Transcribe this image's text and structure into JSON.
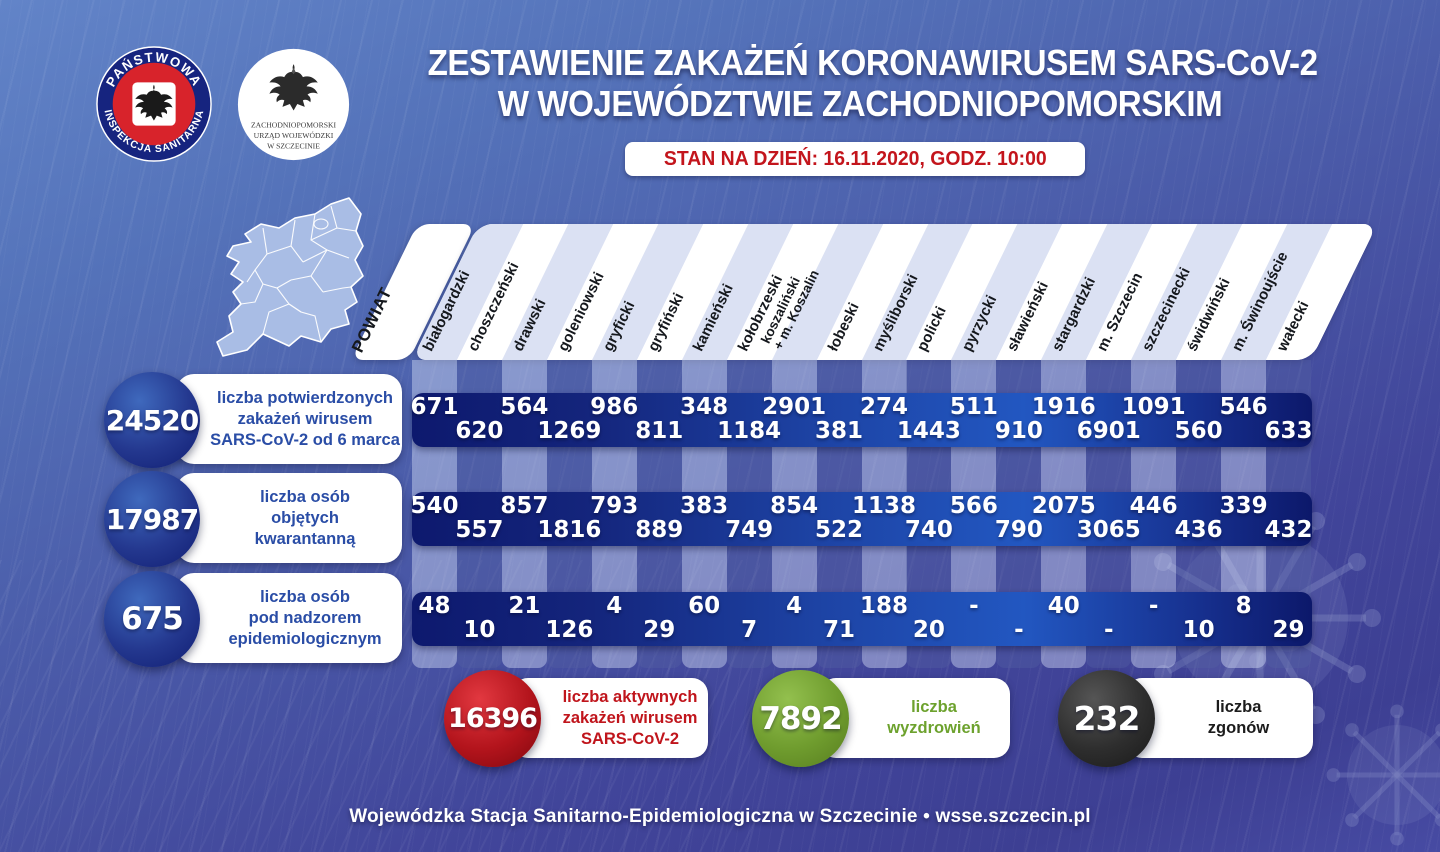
{
  "title": {
    "line1": "ZESTAWIENIE ZAKAŻEŃ KORONAWIRUSEM SARS-CoV-2",
    "line2": "W WOJEWÓDZTWIE ZACHODNIOPOMORSKIM",
    "status": "STAN NA DZIEŃ: 16.11.2020, GODZ. 10:00"
  },
  "logos": {
    "sanepid": {
      "top": "PAŃSTWOWA",
      "bottom": "INSPEKCJA SANITARNA"
    },
    "office": {
      "line1": "ZACHODNIOPOMORSKI",
      "line2": "URZĄD WOJEWÓDZKI",
      "line3": "W SZCZECINIE"
    }
  },
  "table": {
    "corner_label": "POWIAT",
    "columns": [
      "białogardzki",
      "choszczeński",
      "drawski",
      "goleniowski",
      "gryficki",
      "gryfiński",
      "kamieński",
      "kołobrzeski",
      "koszaliński\n+ m. Koszalin",
      "łobeski",
      "myśliborski",
      "policki",
      "pyrzycki",
      "sławieński",
      "stargardzki",
      "m. Szczecin",
      "szczecinecki",
      "świdwiński",
      "m. Świnoujście",
      "wałecki"
    ],
    "rows": [
      {
        "total": "24520",
        "label_lines": [
          "liczba potwierdzonych",
          "zakażeń wirusem",
          "SARS-CoV-2 od 6 marca"
        ],
        "values": [
          "671",
          "620",
          "564",
          "1269",
          "986",
          "811",
          "348",
          "1184",
          "2901",
          "381",
          "274",
          "1443",
          "511",
          "910",
          "1916",
          "6901",
          "1091",
          "560",
          "546",
          "633"
        ]
      },
      {
        "total": "17987",
        "label_lines": [
          "liczba osób",
          "objętych",
          "kwarantanną"
        ],
        "values": [
          "540",
          "557",
          "857",
          "1816",
          "793",
          "889",
          "383",
          "749",
          "854",
          "522",
          "1138",
          "740",
          "566",
          "790",
          "2075",
          "3065",
          "446",
          "436",
          "339",
          "432"
        ]
      },
      {
        "total": "675",
        "label_lines": [
          "liczba osób",
          "pod nadzorem",
          "epidemiologicznym"
        ],
        "values": [
          "48",
          "10",
          "21",
          "126",
          "4",
          "29",
          "60",
          "7",
          "4",
          "71",
          "188",
          "20",
          "-",
          "-",
          "40",
          "-",
          "-",
          "10",
          "8",
          "29"
        ]
      }
    ]
  },
  "summary": [
    {
      "value": "16396",
      "line1": "liczba aktywnych",
      "line2": "zakażeń wirusem",
      "line3": "SARS-CoV-2"
    },
    {
      "value": "7892",
      "line1": "liczba",
      "line2": "wyzdrowień",
      "line3": ""
    },
    {
      "value": "232",
      "line1": "liczba",
      "line2": "zgonów",
      "line3": ""
    }
  ],
  "footer": "Wojewódzka Stacja Sanitarno-Epidemiologiczna w Szczecinie  •  wsse.szczecin.pl",
  "colors": {
    "accent_red": "#c0151c",
    "accent_green": "#6da22e",
    "accent_navy": "#101d72",
    "band_blue": "#2257c1"
  },
  "chart_data": {
    "type": "table",
    "title": "Zestawienie zakażeń koronawirusem SARS-CoV-2 w województwie zachodniopomorskim",
    "as_of": "16.11.2020, godz. 10:00",
    "categories": [
      "białogardzki",
      "choszczeński",
      "drawski",
      "goleniowski",
      "gryficki",
      "gryfiński",
      "kamieński",
      "kołobrzeski",
      "koszaliński + m. Koszalin",
      "łobeski",
      "myśliborski",
      "policki",
      "pyrzycki",
      "sławieński",
      "stargardzki",
      "m. Szczecin",
      "szczecinecki",
      "świdwiński",
      "m. Świnoujście",
      "wałecki"
    ],
    "series": [
      {
        "name": "liczba potwierdzonych zakażeń wirusem SARS-CoV-2 od 6 marca",
        "total": 24520,
        "values": [
          671,
          620,
          564,
          1269,
          986,
          811,
          348,
          1184,
          2901,
          381,
          274,
          1443,
          511,
          910,
          1916,
          6901,
          1091,
          560,
          546,
          633
        ]
      },
      {
        "name": "liczba osób objętych kwarantanną",
        "total": 17987,
        "values": [
          540,
          557,
          857,
          1816,
          793,
          889,
          383,
          749,
          854,
          522,
          1138,
          740,
          566,
          790,
          2075,
          3065,
          446,
          436,
          339,
          432
        ]
      },
      {
        "name": "liczba osób pod nadzorem epidemiologicznym",
        "total": 675,
        "values": [
          48,
          10,
          21,
          126,
          4,
          29,
          60,
          7,
          4,
          71,
          188,
          20,
          null,
          null,
          40,
          null,
          null,
          10,
          8,
          29
        ]
      }
    ],
    "summary": [
      {
        "name": "liczba aktywnych zakażeń wirusem SARS-CoV-2",
        "value": 16396
      },
      {
        "name": "liczba wyzdrowień",
        "value": 7892
      },
      {
        "name": "liczba zgonów",
        "value": 232
      }
    ]
  }
}
